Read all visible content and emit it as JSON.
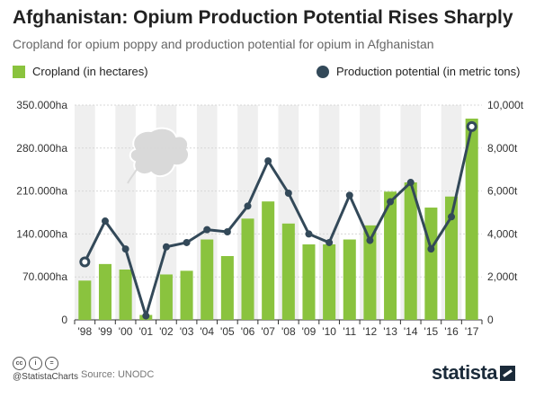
{
  "title": "Afghanistan: Opium Production Potential Rises Sharply",
  "subtitle": "Cropland for opium poppy and production potential for opium in Afghanistan",
  "legend": {
    "cropland": "Cropland (in hectares)",
    "production": "Production potential (in metric tons)"
  },
  "footer": {
    "handle": "@StatistaCharts",
    "source": "Source: UNODC",
    "brand": "statista",
    "cc_icons": [
      "cc",
      "i",
      "="
    ]
  },
  "colors": {
    "bar": "#8ac33e",
    "line": "#334959",
    "band": "#efefef"
  },
  "chart_data": {
    "type": "bar",
    "categories": [
      "'98",
      "'99",
      "'00",
      "'01",
      "'02",
      "'03",
      "'04",
      "'05",
      "'06",
      "'07",
      "'08",
      "'09",
      "'10",
      "'11",
      "'12",
      "'13",
      "'14",
      "'15",
      "'16",
      "'17"
    ],
    "series": [
      {
        "name": "Cropland (in hectares)",
        "type": "bar",
        "axis": "left",
        "values": [
          64000,
          91000,
          82000,
          8000,
          74000,
          80000,
          131000,
          104000,
          165000,
          193000,
          157000,
          123000,
          123000,
          131000,
          154000,
          209000,
          224000,
          183000,
          201000,
          328000
        ]
      },
      {
        "name": "Production potential (in metric tons)",
        "type": "line",
        "axis": "right",
        "values": [
          2700,
          4600,
          3300,
          185,
          3400,
          3600,
          4200,
          4100,
          5300,
          7400,
          5900,
          4000,
          3600,
          5800,
          3700,
          5500,
          6400,
          3300,
          4800,
          9000
        ]
      }
    ],
    "left_axis": {
      "ticks": [
        0,
        70000,
        140000,
        210000,
        280000,
        350000
      ],
      "tick_labels": [
        "0",
        "70.000ha",
        "140.000ha",
        "210.000ha",
        "280.000ha",
        "350.000ha"
      ],
      "ylim": [
        0,
        350000
      ]
    },
    "right_axis": {
      "ticks": [
        0,
        2000,
        4000,
        6000,
        8000,
        10000
      ],
      "tick_labels": [
        "0",
        "2,000t",
        "4,000t",
        "6,000t",
        "8,000t",
        "10,000t"
      ],
      "ylim": [
        0,
        10000
      ]
    },
    "grid": true,
    "alternating_bands": true,
    "highlighted_points": [
      0,
      19
    ],
    "legend_position": "top"
  }
}
